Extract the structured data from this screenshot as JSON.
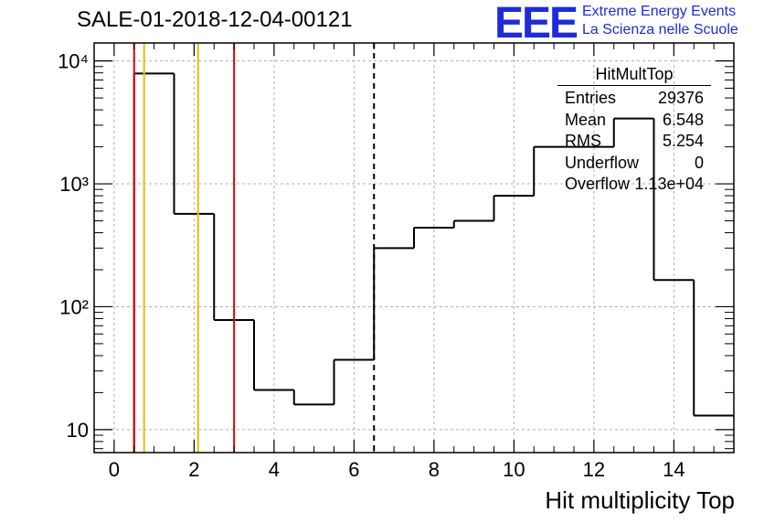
{
  "title": "SALE-01-2018-12-04-00121",
  "logo": {
    "mark": "EEE",
    "line1": "Extreme Energy Events",
    "line2": "La Scienza nelle Scuole",
    "color": "#1f2bd8"
  },
  "stats": {
    "name": "HitMultTop",
    "entries_label": "Entries",
    "entries_value": "29376",
    "mean_label": "Mean",
    "mean_value": "6.548",
    "rms_label": "RMS",
    "rms_value": "5.254",
    "underflow_label": "Underflow",
    "underflow_value": "0",
    "overflow_label": "Overflow",
    "overflow_value": "1.13e+04"
  },
  "chart_data": {
    "type": "histogram",
    "xlabel": "Hit multiplicity Top",
    "ylabel": "",
    "xlim": [
      -0.5,
      15.5
    ],
    "ylim": [
      6.5,
      14000
    ],
    "yscale": "log",
    "grid": true,
    "x_ticks": [
      0,
      2,
      4,
      6,
      8,
      10,
      12,
      14
    ],
    "y_ticks": [
      {
        "value": 10,
        "label": "10"
      },
      {
        "value": 100,
        "label": "10²"
      },
      {
        "value": 1000,
        "label": "10³"
      },
      {
        "value": 10000,
        "label": "10⁴"
      }
    ],
    "bin_edges": [
      0.5,
      1.5,
      2.5,
      3.5,
      4.5,
      5.5,
      6.5,
      7.5,
      8.5,
      9.5,
      10.5,
      11.5,
      12.5,
      13.5,
      14.5,
      15.5
    ],
    "counts": [
      7900,
      570,
      78,
      21,
      16,
      37,
      300,
      440,
      500,
      800,
      2000,
      2000,
      3400,
      165,
      13
    ],
    "vlines": [
      {
        "x": 0.5,
        "color": "#e8000b",
        "style": "solid"
      },
      {
        "x": 0.75,
        "color": "#f5b800",
        "style": "solid"
      },
      {
        "x": 2.1,
        "color": "#f5b800",
        "style": "solid"
      },
      {
        "x": 3.0,
        "color": "#e8000b",
        "style": "solid"
      },
      {
        "x": 6.5,
        "color": "#000000",
        "style": "dashed"
      }
    ]
  }
}
